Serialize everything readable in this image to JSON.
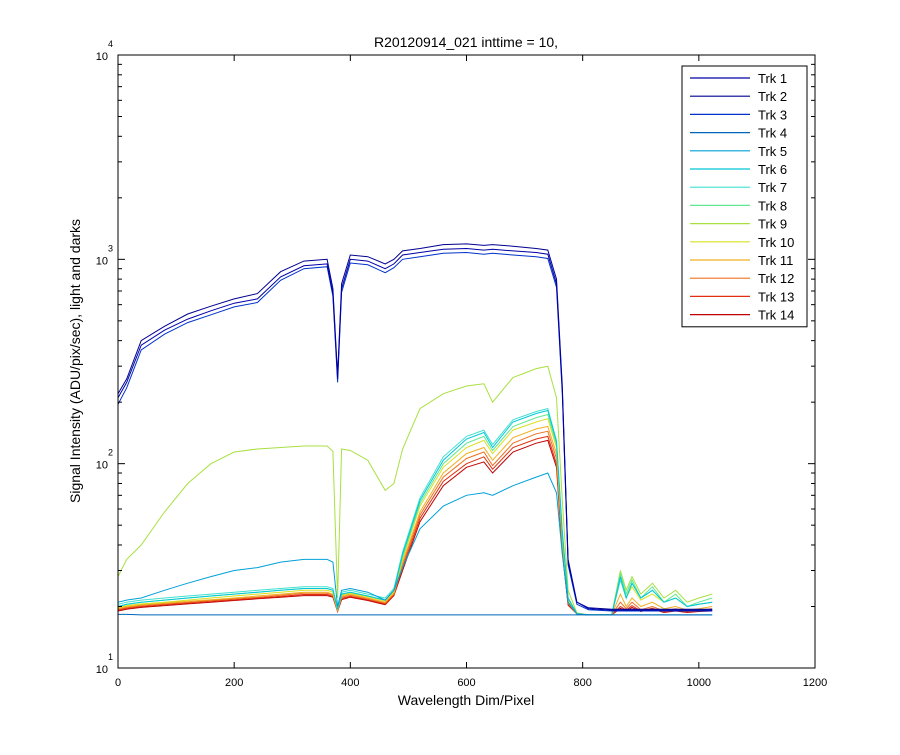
{
  "chart_data": {
    "type": "line",
    "title": "R20120914_021 inttime = 10,",
    "xlabel": "Wavelength Dim/Pixel",
    "ylabel": "Signal Intensity (ADU/pix/sec), light and darks",
    "xlim": [
      0,
      1200
    ],
    "ylim": [
      10,
      10000
    ],
    "yscale": "log",
    "grid": false,
    "legend_position": "top-right",
    "x_ticks": [
      "0",
      "200",
      "400",
      "600",
      "800",
      "1000",
      "1200"
    ],
    "y_ticks": [
      {
        "base": "10",
        "exp": "1"
      },
      {
        "base": "10",
        "exp": "2"
      },
      {
        "base": "10",
        "exp": "3"
      },
      {
        "base": "10",
        "exp": "4"
      }
    ],
    "x": [
      0,
      15,
      40,
      80,
      120,
      160,
      200,
      240,
      280,
      320,
      360,
      370,
      378,
      385,
      400,
      430,
      460,
      475,
      490,
      520,
      560,
      600,
      630,
      645,
      680,
      720,
      740,
      755,
      765,
      775,
      790,
      810,
      850,
      865,
      875,
      885,
      900,
      920,
      940,
      960,
      980,
      1000,
      1023
    ],
    "series": [
      {
        "name": "Trk 1",
        "color": "#0000a8",
        "values": [
          210,
          250,
          380,
          450,
          510,
          560,
          610,
          640,
          820,
          930,
          950,
          680,
          260,
          720,
          1000,
          980,
          900,
          950,
          1050,
          1080,
          1120,
          1130,
          1110,
          1120,
          1100,
          1080,
          1060,
          760,
          230,
          33,
          21,
          19.5,
          19.2,
          19.2,
          19.2,
          19.2,
          19.2,
          19.2,
          19.2,
          19.2,
          19.2,
          19.2,
          19.2
        ]
      },
      {
        "name": "Trk 2",
        "color": "#000090",
        "values": [
          220,
          260,
          400,
          470,
          540,
          590,
          640,
          680,
          870,
          980,
          1000,
          720,
          270,
          760,
          1050,
          1030,
          950,
          1000,
          1100,
          1130,
          1180,
          1190,
          1170,
          1180,
          1160,
          1130,
          1110,
          800,
          240,
          34,
          21,
          19.7,
          19.4,
          19.4,
          19.4,
          19.4,
          19.4,
          19.4,
          19.4,
          19.4,
          19.4,
          19.4,
          19.4
        ]
      },
      {
        "name": "Trk 3",
        "color": "#0033cc",
        "values": [
          195,
          235,
          360,
          430,
          490,
          535,
          585,
          615,
          790,
          900,
          920,
          660,
          250,
          690,
          960,
          940,
          860,
          910,
          1000,
          1030,
          1070,
          1080,
          1060,
          1070,
          1050,
          1030,
          1010,
          730,
          220,
          32,
          20.5,
          19.3,
          19,
          19,
          19,
          19,
          19,
          19,
          19,
          19,
          19,
          19,
          19
        ]
      },
      {
        "name": "Trk 4",
        "color": "#0066bb",
        "values": [
          18.3,
          18.3,
          18.2,
          18.2,
          18.2,
          18.2,
          18.2,
          18.2,
          18.2,
          18.2,
          18.2,
          18.2,
          18.2,
          18.2,
          18.2,
          18.2,
          18.2,
          18.2,
          18.2,
          18.2,
          18.2,
          18.2,
          18.2,
          18.2,
          18.2,
          18.2,
          18.2,
          18.2,
          18.2,
          18.2,
          18.2,
          18.2,
          18.2,
          18.2,
          18.2,
          18.2,
          18.2,
          18.2,
          18.2,
          18.2,
          18.2,
          18.2,
          18.2
        ]
      },
      {
        "name": "Trk 5",
        "color": "#00a0d8",
        "values": [
          21,
          21.5,
          22,
          24,
          26,
          28,
          30,
          31,
          33,
          34,
          34,
          33,
          20,
          24,
          24.5,
          23.5,
          21.5,
          24,
          31,
          48,
          62,
          70,
          72,
          70,
          78,
          86,
          90,
          72,
          36,
          21,
          18.4,
          18.2,
          18.2,
          18.2,
          18.2,
          18.2,
          18.2,
          18.2,
          18.2,
          18.2,
          18.2,
          18.2,
          18.2
        ]
      },
      {
        "name": "Trk 6",
        "color": "#00c8d8",
        "values": [
          20,
          20.5,
          21,
          21.5,
          22,
          22.5,
          23,
          23.5,
          24,
          24.5,
          24.5,
          24,
          19.5,
          23,
          23.5,
          22.5,
          21.5,
          24,
          36,
          66,
          104,
          132,
          142,
          120,
          160,
          176,
          182,
          128,
          46,
          22,
          18.4,
          18.2,
          18.2,
          28,
          22,
          26,
          22,
          24,
          21,
          22,
          20,
          20.5,
          21
        ]
      },
      {
        "name": "Trk 7",
        "color": "#40e0d0",
        "values": [
          20.5,
          21,
          21.5,
          22,
          22.5,
          23,
          23.5,
          24,
          24.5,
          25,
          25,
          24.5,
          19.6,
          23.5,
          24,
          23,
          22,
          24.5,
          37,
          68,
          108,
          136,
          146,
          124,
          164,
          180,
          186,
          130,
          47,
          22,
          18.4,
          18.2,
          18.2,
          27,
          22,
          26,
          22,
          24,
          21,
          22,
          20,
          20.5,
          21
        ]
      },
      {
        "name": "Trk 8",
        "color": "#60e890",
        "values": [
          20,
          20.5,
          21,
          21.5,
          22,
          22.5,
          23,
          23.5,
          24,
          24.5,
          24.5,
          24,
          19.4,
          23,
          23.5,
          22.5,
          21.5,
          24,
          35,
          64,
          100,
          126,
          136,
          116,
          152,
          168,
          174,
          124,
          45,
          22,
          18.4,
          18.2,
          18.2,
          29,
          23,
          27,
          22,
          25,
          21,
          23,
          20,
          21,
          22
        ]
      },
      {
        "name": "Trk 9",
        "color": "#a8e040",
        "values": [
          28,
          34,
          40,
          58,
          80,
          100,
          114,
          118,
          120,
          122,
          122,
          115,
          22,
          118,
          116,
          104,
          74,
          80,
          118,
          186,
          220,
          240,
          246,
          200,
          264,
          292,
          300,
          210,
          66,
          24,
          18.6,
          18.2,
          18.2,
          30,
          24,
          28,
          23,
          26,
          22,
          24,
          21,
          22,
          23
        ]
      },
      {
        "name": "Trk 10",
        "color": "#d8e020",
        "values": [
          19.8,
          20.2,
          20.6,
          21,
          21.5,
          22,
          22.5,
          23,
          23.5,
          24,
          24,
          23.5,
          19.3,
          22.8,
          23.2,
          22.3,
          21.3,
          23.6,
          34,
          62,
          96,
          120,
          130,
          112,
          146,
          160,
          166,
          120,
          44,
          21.5,
          18.4,
          18.2,
          18.2,
          27,
          22,
          25,
          21.5,
          23,
          21,
          22,
          20,
          20.5,
          21
        ]
      },
      {
        "name": "Trk 11",
        "color": "#f0b020",
        "values": [
          19.6,
          20,
          20.4,
          20.8,
          21.2,
          21.6,
          22,
          22.5,
          23,
          23.5,
          23.5,
          23,
          19.2,
          22.5,
          23,
          22,
          21,
          23.3,
          33,
          58,
          90,
          112,
          120,
          104,
          134,
          148,
          152,
          112,
          42,
          21,
          18.4,
          18.2,
          18.2,
          23,
          20,
          22,
          20,
          21,
          19.5,
          20,
          19.2,
          19.5,
          20
        ]
      },
      {
        "name": "Trk 12",
        "color": "#f07020",
        "values": [
          19.4,
          19.8,
          20.2,
          20.6,
          21,
          21.4,
          21.8,
          22.2,
          22.7,
          23.2,
          23.2,
          22.7,
          19.1,
          22.2,
          22.7,
          21.8,
          20.8,
          23,
          32,
          56,
          86,
          106,
          114,
          98,
          126,
          140,
          144,
          106,
          40,
          20.8,
          18.4,
          18.2,
          18.2,
          21,
          19.5,
          21,
          19.3,
          20,
          19,
          19.5,
          19,
          19.2,
          19.5
        ]
      },
      {
        "name": "Trk 13",
        "color": "#e03010",
        "values": [
          19.2,
          19.6,
          20,
          20.4,
          20.8,
          21.2,
          21.6,
          22,
          22.4,
          22.9,
          22.9,
          22.4,
          19,
          21.9,
          22.4,
          21.6,
          20.6,
          22.8,
          31,
          54,
          82,
          100,
          108,
          94,
          120,
          132,
          136,
          100,
          38,
          20.5,
          18.4,
          18.2,
          18.2,
          20,
          19.2,
          20.2,
          19,
          19.6,
          18.8,
          19.2,
          18.8,
          19,
          19.2
        ]
      },
      {
        "name": "Trk 14",
        "color": "#c00000",
        "values": [
          19,
          19.4,
          19.8,
          20.2,
          20.6,
          21,
          21.4,
          21.8,
          22.2,
          22.6,
          22.6,
          22.2,
          18.9,
          21.6,
          22.2,
          21.4,
          20.4,
          22.6,
          30,
          52,
          78,
          96,
          102,
          90,
          114,
          126,
          130,
          96,
          37,
          20.3,
          18.4,
          18.2,
          18.2,
          19.6,
          19,
          19.8,
          18.9,
          19.4,
          18.7,
          19,
          18.7,
          18.9,
          19
        ]
      }
    ]
  }
}
